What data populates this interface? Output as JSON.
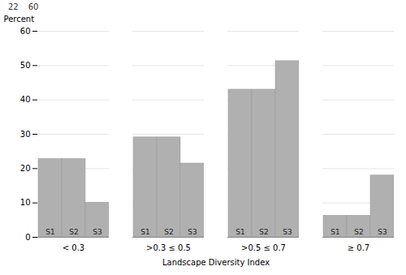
{
  "chart_data": {
    "type": "bar",
    "categories": [
      "< 0.3",
      ">0.3 ≤ 0.5",
      ">0.5 ≤ 0.7",
      "≥ 0.7"
    ],
    "series": [
      {
        "name": "S1",
        "color": "#b0b0b0",
        "values": [
          22.8,
          29.1,
          43.0,
          6.3
        ]
      },
      {
        "name": "S2",
        "color": "#b0b0b0",
        "values": [
          22.8,
          29.1,
          43.0,
          6.3
        ]
      },
      {
        "name": "S3",
        "color": "#b0b0b0",
        "values": [
          10.1,
          21.5,
          51.3,
          18.0
        ]
      }
    ],
    "xlabel": "Landscape Diversity Index",
    "ylabel": "Percent",
    "ylim": [
      0,
      60
    ],
    "yticks": [
      0,
      10,
      20,
      30,
      40,
      50,
      60
    ],
    "grid": true,
    "annotations": [
      "22",
      "60"
    ]
  }
}
